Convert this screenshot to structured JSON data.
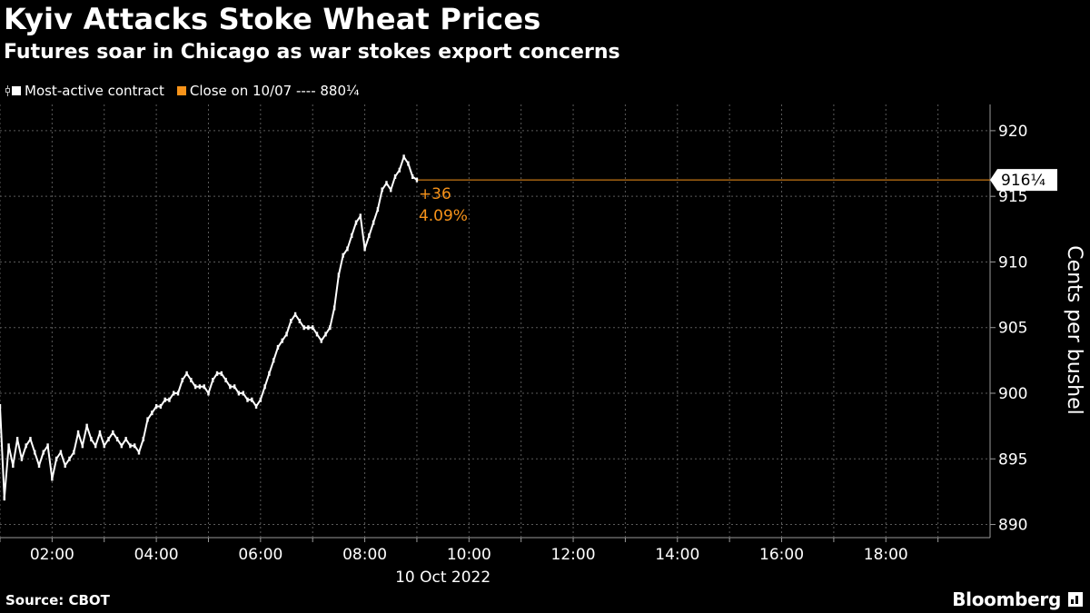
{
  "header": {
    "title": "Kyiv Attacks Stoke Wheat Prices",
    "subtitle": "Futures soar in Chicago as war stokes export concerns"
  },
  "legend": {
    "series_label": "Most-active contract",
    "close_label": "Close on 10/07 ---- 880¼"
  },
  "footer": {
    "source": "Source: CBOT",
    "brand": "Bloomberg"
  },
  "chart_data": {
    "type": "line",
    "title": "Kyiv Attacks Stoke Wheat Prices",
    "subtitle": "Futures soar in Chicago as war stokes export concerns",
    "xlabel": "10 Oct 2022",
    "ylabel": "Cents per bushel",
    "x_ticks": [
      "02:00",
      "04:00",
      "06:00",
      "08:00",
      "10:00",
      "12:00",
      "14:00",
      "16:00",
      "18:00"
    ],
    "y_ticks": [
      890,
      895,
      900,
      905,
      910,
      915,
      920
    ],
    "xlim": [
      "01:00",
      "20:00"
    ],
    "ylim": [
      889,
      922
    ],
    "grid": true,
    "reference_line": {
      "label": "Close on 10/07",
      "value": 880.25
    },
    "last_value_label": "916¼",
    "last_value": 916.25,
    "change_label": "+36",
    "change_pct_label": "4.09%",
    "colors": {
      "series": "#ffffff",
      "accent": "#f7931a",
      "grid": "#5a5a5a"
    },
    "series": [
      {
        "name": "Most-active contract",
        "x": [
          "01:00",
          "01:05",
          "01:10",
          "01:15",
          "01:20",
          "01:25",
          "01:30",
          "01:35",
          "01:40",
          "01:45",
          "01:50",
          "01:55",
          "02:00",
          "02:05",
          "02:10",
          "02:15",
          "02:20",
          "02:25",
          "02:30",
          "02:35",
          "02:40",
          "02:45",
          "02:50",
          "02:55",
          "03:00",
          "03:05",
          "03:10",
          "03:15",
          "03:20",
          "03:25",
          "03:30",
          "03:35",
          "03:40",
          "03:45",
          "03:50",
          "03:55",
          "04:00",
          "04:05",
          "04:10",
          "04:15",
          "04:20",
          "04:25",
          "04:30",
          "04:35",
          "04:40",
          "04:45",
          "04:50",
          "04:55",
          "05:00",
          "05:05",
          "05:10",
          "05:15",
          "05:20",
          "05:25",
          "05:30",
          "05:35",
          "05:40",
          "05:45",
          "05:50",
          "05:55",
          "06:00",
          "06:05",
          "06:10",
          "06:15",
          "06:20",
          "06:25",
          "06:30",
          "06:35",
          "06:40",
          "06:45",
          "06:50",
          "06:55",
          "07:00",
          "07:05",
          "07:10",
          "07:15",
          "07:20",
          "07:25",
          "07:30",
          "07:35",
          "07:40",
          "07:45",
          "07:50",
          "07:55",
          "08:00",
          "08:05",
          "08:10",
          "08:15",
          "08:20",
          "08:25",
          "08:30",
          "08:35",
          "08:40",
          "08:45",
          "08:50",
          "08:55",
          "09:00"
        ],
        "values": [
          899.0,
          892.0,
          896.0,
          894.5,
          896.5,
          895.0,
          896.0,
          896.5,
          895.5,
          894.5,
          895.5,
          896.0,
          893.5,
          895.0,
          895.5,
          894.5,
          895.0,
          895.5,
          897.0,
          896.0,
          897.5,
          896.5,
          896.0,
          897.0,
          896.0,
          896.5,
          897.0,
          896.5,
          896.0,
          896.5,
          896.0,
          896.0,
          895.5,
          896.5,
          898.0,
          898.5,
          899.0,
          899.0,
          899.5,
          899.5,
          900.0,
          900.0,
          901.0,
          901.5,
          901.0,
          900.5,
          900.5,
          900.5,
          900.0,
          901.0,
          901.5,
          901.5,
          901.0,
          900.5,
          900.5,
          900.0,
          900.0,
          899.5,
          899.5,
          899.0,
          899.5,
          900.5,
          901.5,
          902.5,
          903.5,
          904.0,
          904.5,
          905.5,
          906.0,
          905.5,
          905.0,
          905.0,
          905.0,
          904.5,
          904.0,
          904.5,
          905.0,
          906.5,
          909.0,
          910.5,
          911.0,
          912.0,
          913.0,
          913.5,
          911.0,
          912.0,
          913.0,
          914.0,
          915.5,
          916.0,
          915.5,
          916.5,
          917.0,
          918.0,
          917.5,
          916.5,
          916.25
        ]
      }
    ]
  }
}
